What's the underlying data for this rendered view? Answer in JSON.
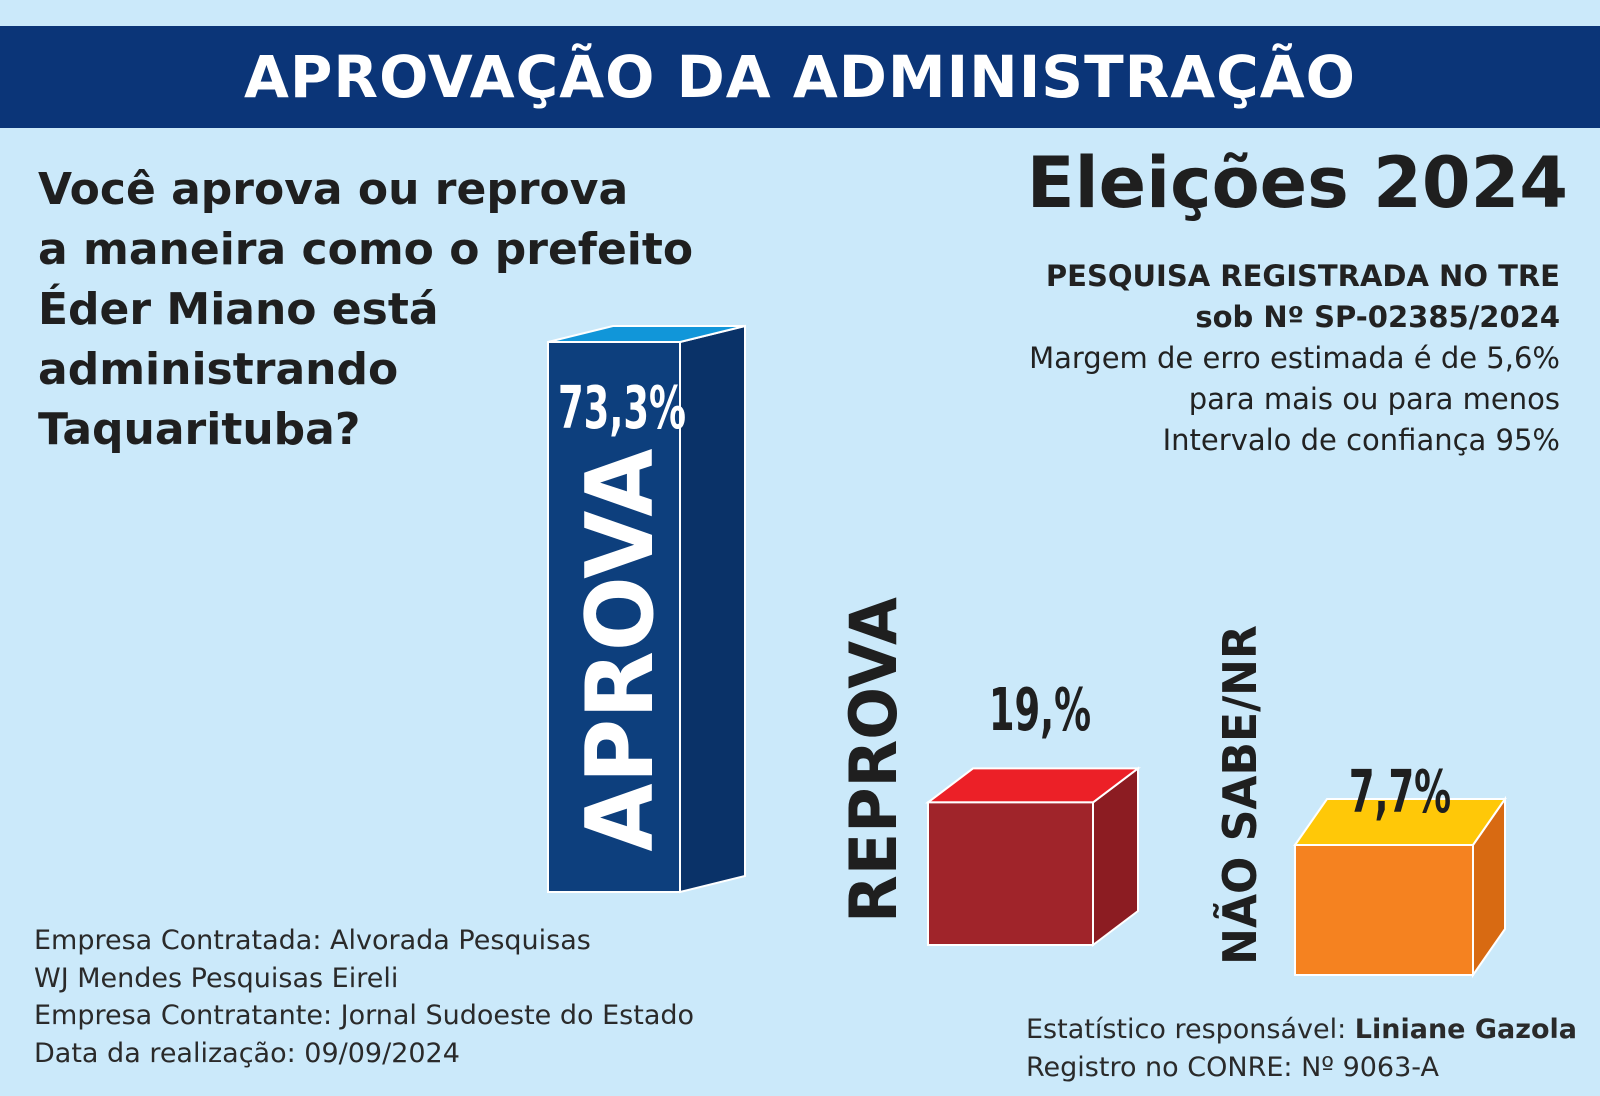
{
  "header": {
    "title": "APROVAÇÃO DA ADMINISTRAÇÃO"
  },
  "question": "Você aprova ou reprova\na maneira como o prefeito\nÉder Miano está\nadministrando\nTaquarituba?",
  "elections_title": "Eleições 2024",
  "registration": {
    "line1": "PESQUISA REGISTRADA NO TRE",
    "line2": "sob Nº SP-02385/2024",
    "line3": "Margem de erro estimada é de 5,6%",
    "line4": "para mais ou para menos",
    "line5": "Intervalo de confiança 95%"
  },
  "footer_left": {
    "line1": "Empresa Contratada: Alvorada Pesquisas",
    "line2": "WJ Mendes Pesquisas Eireli",
    "line3": "Empresa Contratante: Jornal Sudoeste do Estado",
    "line4": "Data da realização: 09/09/2024"
  },
  "footer_right": {
    "statistician_prefix": "Estatístico responsável: ",
    "statistician_name": "Liniane Gazola",
    "registry": "Registro no CONRE: Nº 9063-A"
  },
  "colors": {
    "banner": "#0b3578",
    "background": "#cbe9fa",
    "aprova_front": "#0d3f7d",
    "aprova_top": "#1196d9",
    "reprova_front": "#a0242a",
    "reprova_top": "#ec2027",
    "naosabe_front": "#f58220",
    "naosabe_top": "#ffc808"
  },
  "chart_data": {
    "type": "bar",
    "categories": [
      "APROVA",
      "REPROVA",
      "NÃO SABE/NR"
    ],
    "values": [
      73.3,
      19.0,
      7.7
    ],
    "value_labels": [
      "73,3%",
      "19,%",
      "7,7%"
    ],
    "style": "3d-boxes",
    "ylim": [
      0,
      73.3
    ]
  }
}
